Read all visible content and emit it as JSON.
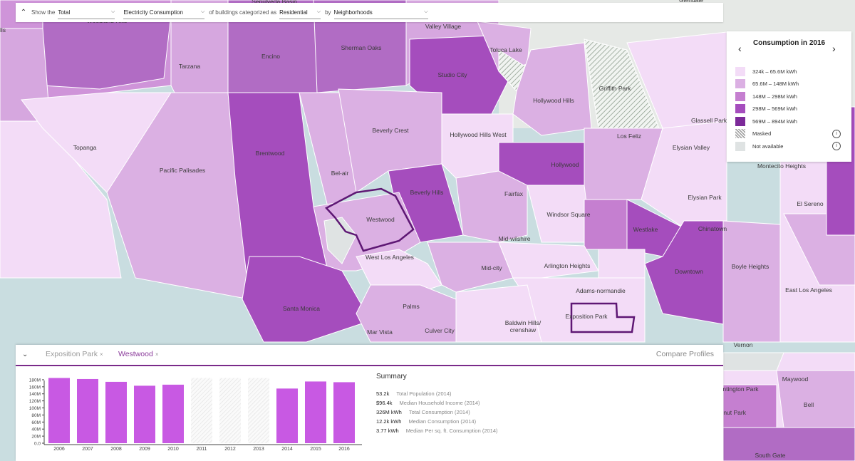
{
  "topbar": {
    "show_label": "Show the",
    "aggregate_value": "Total",
    "metric_value": "Electricity Consumption",
    "buildings_label": "of buildings categorized as",
    "category_value": "Residential",
    "by_label": "by",
    "grouping_value": "Neighborhoods"
  },
  "legend": {
    "title": "Consumption in 2016",
    "items": [
      {
        "label": "324k – 65.6M kWh",
        "color": "#f3dcf7"
      },
      {
        "label": "65.6M – 148M kWh",
        "color": "#dbb0e3"
      },
      {
        "label": "148M – 298M kWh",
        "color": "#c57fd0"
      },
      {
        "label": "298M – 569M kWh",
        "color": "#a54dbd"
      },
      {
        "label": "569M – 894M kWh",
        "color": "#7c2a99"
      },
      {
        "label": "Masked",
        "color": "hatch"
      },
      {
        "label": "Not available",
        "color": "#dfe3e3"
      }
    ]
  },
  "map_labels": [
    "Sepulveda Basin",
    "Woodland Hills",
    "Hills",
    "Valley Village",
    "Toluca Lake",
    "Glendale",
    "Encino",
    "Sherman Oaks",
    "Tarzana",
    "Studio City",
    "Griffith Park",
    "Hollywood Hills",
    "Glassell Park",
    "Topanga",
    "Beverly Crest",
    "Hollywood Hills West",
    "Los Feliz",
    "Elysian Valley",
    "Brentwood",
    "Pacific Palisades",
    "Bel-air",
    "Beverly Hills",
    "Hollywood",
    "Montecito Heights",
    "Fairfax",
    "Elysian Park",
    "El Sereno",
    "Westwood",
    "Windsor Square",
    "Westlake",
    "Chinatown",
    "Mid-wilshire",
    "West Los Angeles",
    "Mid-city",
    "Arlington Heights",
    "Boyle Heights",
    "Downtown",
    "Adams-normandie",
    "East Los Angeles",
    "Santa Monica",
    "Palms",
    "Exposition Park",
    "Baldwin Hills/ crenshaw",
    "Mar Vista",
    "Culver City",
    "Vernon",
    "Maywood",
    "Bell",
    "South Gate",
    "Huntington Park",
    "Walnut Park"
  ],
  "panel": {
    "tabs": [
      {
        "label": "Exposition Park",
        "active": false
      },
      {
        "label": "Westwood",
        "active": true
      }
    ],
    "compare_label": "Compare Profiles",
    "summary_title": "Summary",
    "summary": [
      {
        "value": "53.2k",
        "desc": "Total Population (2014)"
      },
      {
        "value": "$96.4k",
        "desc": "Median Household Income (2014)"
      },
      {
        "value": "326M kWh",
        "desc": "Total Consumption (2014)"
      },
      {
        "value": "12.2k kWh",
        "desc": "Median Consumption (2014)"
      },
      {
        "value": "3.77 kWh",
        "desc": "Median Per sq. ft. Consumption (2014)"
      }
    ]
  },
  "chart_data": {
    "type": "bar",
    "categories": [
      "2006",
      "2007",
      "2008",
      "2009",
      "2010",
      "2011",
      "2012",
      "2013",
      "2014",
      "2015",
      "2016"
    ],
    "values": [
      185,
      182,
      174,
      163,
      166,
      null,
      null,
      null,
      155,
      175,
      173
    ],
    "masked": [
      false,
      false,
      false,
      false,
      false,
      true,
      true,
      true,
      false,
      false,
      false
    ],
    "yticks": [
      "0.0",
      "20M",
      "40M",
      "60M",
      "80M",
      "100M",
      "120M",
      "140M",
      "160M",
      "180M"
    ],
    "ylim": [
      0,
      190
    ],
    "bar_color": "#c859e3"
  }
}
